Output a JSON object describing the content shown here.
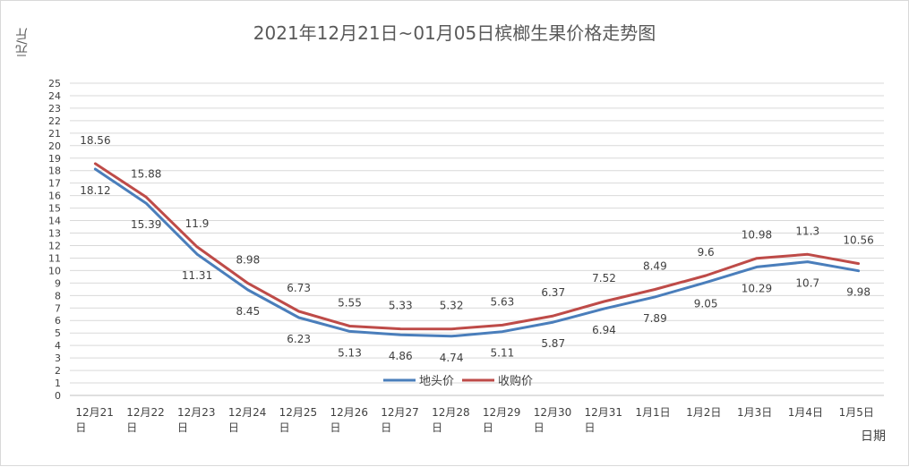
{
  "chart_data": {
    "type": "line",
    "title": "2021年12月21日~01月05日槟榔生果价格走势图",
    "ylabel": "元/斤",
    "xlabel": "日期",
    "ylim": [
      0,
      25
    ],
    "yticks": [
      0,
      1,
      2,
      3,
      4,
      5,
      6,
      7,
      8,
      9,
      10,
      11,
      12,
      13,
      14,
      15,
      16,
      17,
      18,
      19,
      20,
      21,
      22,
      23,
      24,
      25
    ],
    "grid": true,
    "legend_position": "inside-bottom-center",
    "categories": [
      [
        "12月21",
        "日"
      ],
      [
        "12月22",
        "日"
      ],
      [
        "12月23",
        "日"
      ],
      [
        "12月24",
        "日"
      ],
      [
        "12月25",
        "日"
      ],
      [
        "12月26",
        "日"
      ],
      [
        "12月27",
        "日"
      ],
      [
        "12月28",
        "日"
      ],
      [
        "12月29",
        "日"
      ],
      [
        "12月30",
        "日"
      ],
      [
        "12月31",
        "日"
      ],
      [
        "1月1日"
      ],
      [
        "1月2日"
      ],
      [
        "1月3日"
      ],
      [
        "1月4日"
      ],
      [
        "1月5日"
      ]
    ],
    "series": [
      {
        "name": "地头价",
        "color": "#4a7ebb",
        "values": [
          18.12,
          15.39,
          11.31,
          8.45,
          6.23,
          5.13,
          4.86,
          4.74,
          5.11,
          5.87,
          6.94,
          7.89,
          9.05,
          10.29,
          10.7,
          9.98
        ],
        "labels": [
          "18.12",
          "15.39",
          "11.31",
          "8.45",
          "6.23",
          "5.13",
          "4.86",
          "4.74",
          "5.11",
          "5.87",
          "6.94",
          "7.89",
          "9.05",
          "10.29",
          "10.7",
          "9.98"
        ]
      },
      {
        "name": "收购价",
        "color": "#be4b48",
        "values": [
          18.56,
          15.88,
          11.9,
          8.98,
          6.73,
          5.55,
          5.33,
          5.32,
          5.63,
          6.37,
          7.52,
          8.49,
          9.6,
          10.98,
          11.3,
          10.56
        ],
        "labels": [
          "18.56",
          "15.88",
          "11.9",
          "8.98",
          "6.73",
          "5.55",
          "5.33",
          "5.32",
          "5.63",
          "6.37",
          "7.52",
          "8.49",
          "9.6",
          "10.98",
          "11.3",
          "10.56"
        ]
      }
    ]
  }
}
